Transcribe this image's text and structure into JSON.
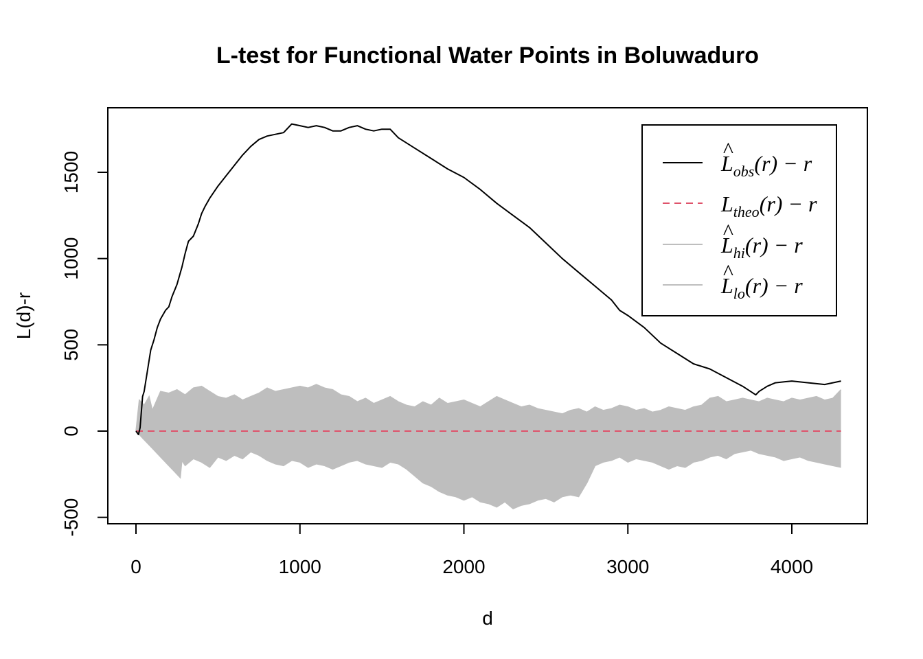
{
  "chart_data": {
    "type": "line",
    "title": "L-test for Functional Water Points in Boluwaduro",
    "xlabel": "d",
    "ylabel": "L(d)-r",
    "xlim": [
      0,
      4300
    ],
    "ylim": [
      -500,
      1800
    ],
    "x_ticks": [
      0,
      1000,
      2000,
      3000,
      4000
    ],
    "x_tick_labels": [
      "0",
      "1000",
      "2000",
      "3000",
      "4000"
    ],
    "y_ticks": [
      -500,
      0,
      500,
      1000,
      1500
    ],
    "y_tick_labels": [
      "-500",
      "0",
      "500",
      "1000",
      "1500"
    ],
    "grid": false,
    "legend_position": "top-right",
    "colors": {
      "obs": "#000000",
      "theo": "#DF536B",
      "envelope": "#BEBEBE"
    },
    "legend": [
      {
        "key": "obs",
        "label": "L̂obs(r) − r",
        "base": "L",
        "hat": true,
        "sub": "obs",
        "rest": "(r) − r",
        "style": "solid",
        "color": "#000000"
      },
      {
        "key": "theo",
        "label": "Ltheo(r) − r",
        "base": "L",
        "hat": false,
        "sub": "theo",
        "rest": "(r) − r",
        "style": "dashed",
        "color": "#DF536B"
      },
      {
        "key": "hi",
        "label": "L̂hi(r) − r",
        "base": "L",
        "hat": true,
        "sub": "hi",
        "rest": "(r) − r",
        "style": "solid",
        "color": "#BEBEBE"
      },
      {
        "key": "lo",
        "label": "L̂lo(r) − r",
        "base": "L",
        "hat": true,
        "sub": "lo",
        "rest": "(r) − r",
        "style": "solid",
        "color": "#BEBEBE"
      }
    ],
    "series": [
      {
        "name": "L̂obs(r) − r",
        "key": "obs",
        "x": [
          0,
          15,
          25,
          40,
          50,
          70,
          90,
          110,
          130,
          150,
          180,
          200,
          220,
          250,
          280,
          300,
          320,
          350,
          380,
          400,
          420,
          450,
          500,
          550,
          600,
          650,
          700,
          750,
          800,
          850,
          900,
          950,
          1000,
          1050,
          1100,
          1150,
          1200,
          1250,
          1300,
          1350,
          1400,
          1450,
          1500,
          1550,
          1600,
          1700,
          1800,
          1900,
          2000,
          2100,
          2200,
          2300,
          2400,
          2500,
          2600,
          2700,
          2800,
          2900,
          2950,
          3000,
          3100,
          3200,
          3300,
          3400,
          3500,
          3600,
          3700,
          3780,
          3800,
          3850,
          3900,
          4000,
          4100,
          4200,
          4300
        ],
        "y": [
          0,
          -20,
          20,
          200,
          230,
          350,
          470,
          530,
          600,
          650,
          700,
          720,
          780,
          850,
          950,
          1030,
          1100,
          1130,
          1200,
          1260,
          1300,
          1350,
          1420,
          1480,
          1540,
          1600,
          1650,
          1690,
          1710,
          1720,
          1730,
          1780,
          1770,
          1760,
          1770,
          1760,
          1740,
          1740,
          1760,
          1770,
          1750,
          1740,
          1750,
          1750,
          1700,
          1640,
          1580,
          1520,
          1470,
          1400,
          1320,
          1250,
          1180,
          1090,
          1000,
          920,
          840,
          760,
          700,
          670,
          600,
          510,
          450,
          390,
          360,
          310,
          260,
          210,
          230,
          260,
          280,
          290,
          280,
          270,
          290
        ]
      },
      {
        "name": "Ltheo(r) − r",
        "key": "theo",
        "x": [
          0,
          4300
        ],
        "y": [
          0,
          0
        ]
      },
      {
        "name": "L̂hi(r) − r",
        "key": "hi",
        "x": [
          0,
          20,
          50,
          80,
          100,
          150,
          200,
          250,
          300,
          350,
          400,
          450,
          500,
          550,
          600,
          650,
          700,
          750,
          800,
          850,
          900,
          950,
          1000,
          1050,
          1100,
          1150,
          1200,
          1250,
          1300,
          1350,
          1400,
          1450,
          1500,
          1550,
          1600,
          1650,
          1700,
          1750,
          1800,
          1850,
          1900,
          1950,
          2000,
          2050,
          2100,
          2150,
          2200,
          2250,
          2300,
          2350,
          2400,
          2450,
          2500,
          2550,
          2600,
          2650,
          2700,
          2750,
          2800,
          2850,
          2900,
          2950,
          3000,
          3050,
          3100,
          3150,
          3200,
          3250,
          3300,
          3350,
          3400,
          3450,
          3500,
          3550,
          3600,
          3650,
          3700,
          3750,
          3800,
          3850,
          3900,
          3950,
          4000,
          4050,
          4100,
          4150,
          4200,
          4250,
          4300
        ],
        "y": [
          0,
          180,
          150,
          200,
          120,
          230,
          220,
          240,
          210,
          250,
          260,
          230,
          200,
          190,
          210,
          180,
          200,
          220,
          250,
          230,
          240,
          250,
          260,
          250,
          270,
          250,
          240,
          210,
          200,
          170,
          190,
          160,
          180,
          200,
          170,
          150,
          140,
          170,
          150,
          190,
          160,
          170,
          180,
          160,
          140,
          170,
          200,
          180,
          160,
          140,
          150,
          130,
          120,
          110,
          100,
          120,
          130,
          110,
          140,
          120,
          130,
          150,
          140,
          120,
          130,
          110,
          120,
          140,
          130,
          120,
          140,
          150,
          190,
          200,
          170,
          180,
          190,
          180,
          170,
          190,
          180,
          170,
          190,
          180,
          190,
          200,
          180,
          190,
          240
        ]
      },
      {
        "name": "L̂lo(r) − r",
        "key": "lo",
        "x": [
          0,
          20,
          50,
          80,
          100,
          150,
          200,
          250,
          270,
          280,
          300,
          350,
          400,
          450,
          500,
          550,
          600,
          650,
          700,
          750,
          800,
          850,
          900,
          950,
          1000,
          1050,
          1100,
          1150,
          1200,
          1250,
          1300,
          1350,
          1400,
          1450,
          1500,
          1550,
          1600,
          1650,
          1700,
          1750,
          1800,
          1850,
          1900,
          1950,
          2000,
          2050,
          2100,
          2150,
          2200,
          2250,
          2300,
          2350,
          2400,
          2450,
          2500,
          2550,
          2600,
          2650,
          2700,
          2750,
          2800,
          2850,
          2900,
          2950,
          3000,
          3050,
          3100,
          3150,
          3200,
          3250,
          3300,
          3350,
          3400,
          3450,
          3500,
          3550,
          3600,
          3650,
          3700,
          3750,
          3800,
          3850,
          3900,
          3950,
          4000,
          4050,
          4100,
          4150,
          4200,
          4250,
          4300
        ],
        "y": [
          0,
          -20,
          -50,
          -80,
          -100,
          -150,
          -200,
          -250,
          -270,
          -170,
          -200,
          -160,
          -180,
          -210,
          -150,
          -170,
          -140,
          -160,
          -120,
          -140,
          -170,
          -190,
          -200,
          -170,
          -180,
          -210,
          -190,
          -200,
          -220,
          -200,
          -180,
          -170,
          -190,
          -200,
          -210,
          -180,
          -190,
          -220,
          -260,
          -300,
          -320,
          -350,
          -370,
          -380,
          -400,
          -380,
          -410,
          -420,
          -440,
          -410,
          -450,
          -430,
          -420,
          -400,
          -390,
          -410,
          -380,
          -370,
          -380,
          -300,
          -200,
          -180,
          -170,
          -150,
          -180,
          -160,
          -170,
          -180,
          -200,
          -220,
          -200,
          -210,
          -180,
          -170,
          -150,
          -140,
          -160,
          -130,
          -120,
          -110,
          -130,
          -140,
          -150,
          -170,
          -160,
          -150,
          -170,
          -180,
          -190,
          -200,
          -210
        ]
      }
    ]
  }
}
